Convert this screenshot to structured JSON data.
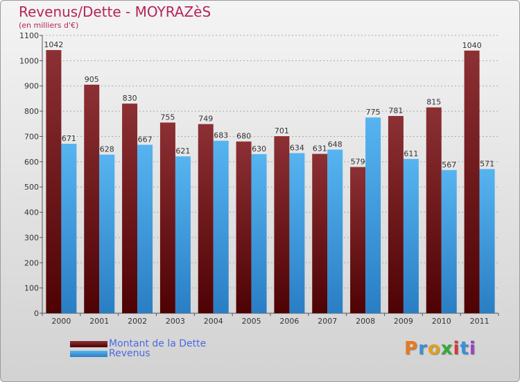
{
  "title": "Revenus/Dette - MOYRAZèS",
  "subtitle": "(en milliers d'€)",
  "colors": {
    "dette": "#7a1e22",
    "revenus": "#3c9de0",
    "title": "#b5245a"
  },
  "legend": {
    "dette_label": "Montant de la Dette",
    "revenus_label": "Revenus"
  },
  "logo": {
    "text": "Proxiti"
  },
  "chart_data": {
    "type": "bar",
    "title": "Revenus/Dette - MOYRAZèS",
    "ylabel": "(en milliers d'€)",
    "xlabel": "",
    "ylim": [
      0,
      1100
    ],
    "yticks": [
      0,
      100,
      200,
      300,
      400,
      500,
      600,
      700,
      800,
      900,
      1000,
      1100
    ],
    "grid": true,
    "legend_position": "bottom-left",
    "categories": [
      "2000",
      "2001",
      "2002",
      "2003",
      "2004",
      "2005",
      "2006",
      "2007",
      "2008",
      "2009",
      "2010",
      "2011"
    ],
    "series": [
      {
        "name": "Montant de la Dette",
        "values": [
          1042,
          905,
          830,
          755,
          749,
          680,
          701,
          631,
          579,
          781,
          815,
          1040
        ]
      },
      {
        "name": "Revenus",
        "values": [
          671,
          628,
          667,
          621,
          683,
          630,
          634,
          648,
          775,
          611,
          567,
          571
        ]
      }
    ]
  }
}
